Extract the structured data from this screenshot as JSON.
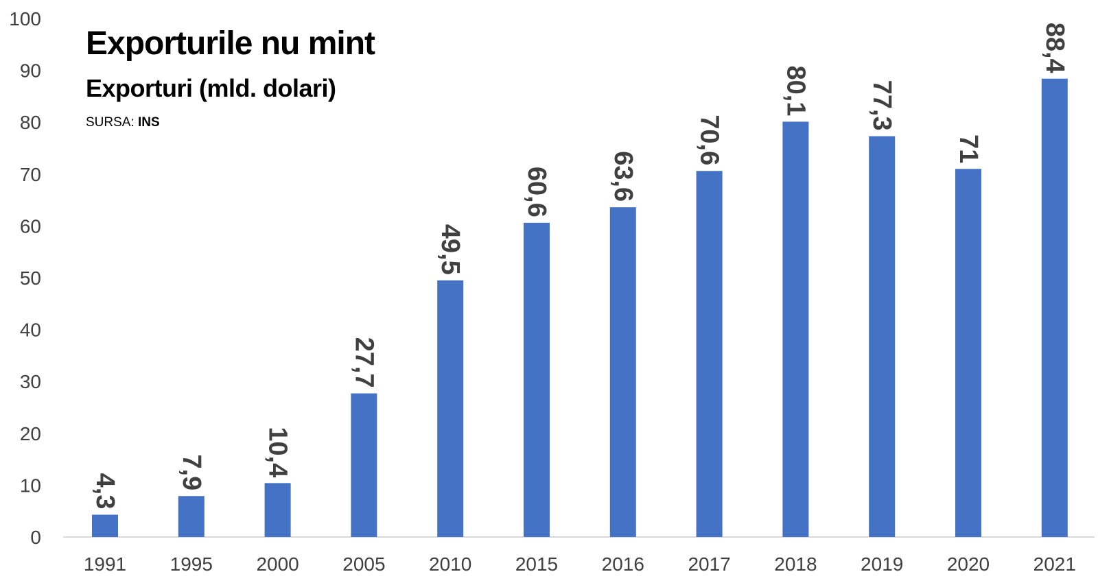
{
  "title": "Exporturile nu mint",
  "subtitle": "Exporturi (mld. dolari)",
  "source_prefix": "SURSA: ",
  "source_name": "INS",
  "colors": {
    "bar": "#4472C4",
    "axis": "#D9D9D9",
    "text": "#404040"
  },
  "chart_data": {
    "type": "bar",
    "categories": [
      "1991",
      "1995",
      "2000",
      "2005",
      "2010",
      "2015",
      "2016",
      "2017",
      "2018",
      "2019",
      "2020",
      "2021"
    ],
    "values": [
      4.3,
      7.9,
      10.4,
      27.7,
      49.5,
      60.6,
      63.6,
      70.6,
      80.1,
      77.3,
      71,
      88.4
    ],
    "data_labels": [
      "4,3",
      "7,9",
      "10,4",
      "27,7",
      "49,5",
      "60,6",
      "63,6",
      "70,6",
      "80,1",
      "77,3",
      "71",
      "88,4"
    ],
    "yticks": [
      0,
      10,
      20,
      30,
      40,
      50,
      60,
      70,
      80,
      90,
      100
    ],
    "ylim": [
      0,
      100
    ],
    "grid": false,
    "legend": "none"
  }
}
